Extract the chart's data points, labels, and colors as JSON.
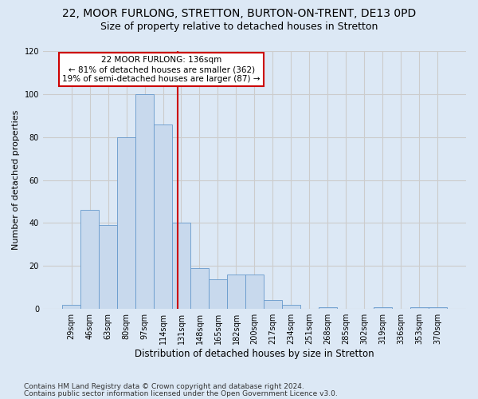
{
  "title1": "22, MOOR FURLONG, STRETTON, BURTON-ON-TRENT, DE13 0PD",
  "title2": "Size of property relative to detached houses in Stretton",
  "xlabel": "Distribution of detached houses by size in Stretton",
  "ylabel": "Number of detached properties",
  "bin_labels": [
    "29sqm",
    "46sqm",
    "63sqm",
    "80sqm",
    "97sqm",
    "114sqm",
    "131sqm",
    "148sqm",
    "165sqm",
    "182sqm",
    "200sqm",
    "217sqm",
    "234sqm",
    "251sqm",
    "268sqm",
    "285sqm",
    "302sqm",
    "319sqm",
    "336sqm",
    "353sqm",
    "370sqm"
  ],
  "bar_heights": [
    2,
    46,
    39,
    80,
    100,
    86,
    40,
    19,
    14,
    16,
    16,
    4,
    2,
    0,
    1,
    0,
    0,
    1,
    0,
    1,
    1
  ],
  "bar_color": "#c8d9ed",
  "bar_edge_color": "#6699cc",
  "grid_color": "#cccccc",
  "bg_color": "#dce8f5",
  "vline_color": "#cc0000",
  "annotation_line1": "22 MOOR FURLONG: 136sqm",
  "annotation_line2": "← 81% of detached houses are smaller (362)",
  "annotation_line3": "19% of semi-detached houses are larger (87) →",
  "annotation_box_color": "#ffffff",
  "annotation_box_edge": "#cc0000",
  "footer1": "Contains HM Land Registry data © Crown copyright and database right 2024.",
  "footer2": "Contains public sector information licensed under the Open Government Licence v3.0.",
  "ylim": [
    0,
    120
  ],
  "yticks": [
    0,
    20,
    40,
    60,
    80,
    100,
    120
  ],
  "title1_fontsize": 10,
  "title2_fontsize": 9,
  "xlabel_fontsize": 8.5,
  "ylabel_fontsize": 8,
  "tick_fontsize": 7,
  "annotation_fontsize": 7.5,
  "footer_fontsize": 6.5
}
